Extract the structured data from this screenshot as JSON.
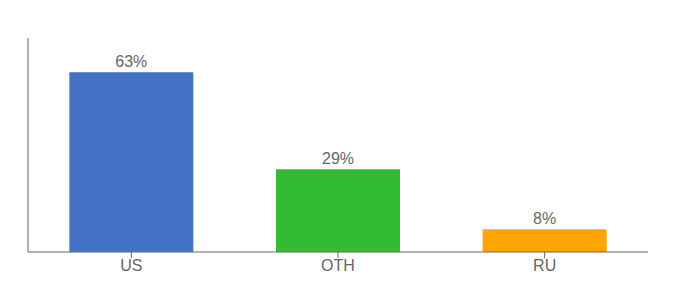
{
  "chart_data": {
    "type": "bar",
    "categories": [
      "US",
      "OTH",
      "RU"
    ],
    "values": [
      63,
      29,
      8
    ],
    "value_labels": [
      "63%",
      "29%",
      "8%"
    ],
    "colors": [
      "#4472C4",
      "#33BB33",
      "#FFA500"
    ],
    "ylim": [
      0,
      75
    ],
    "data_labels": true,
    "tick_labels": "x"
  }
}
